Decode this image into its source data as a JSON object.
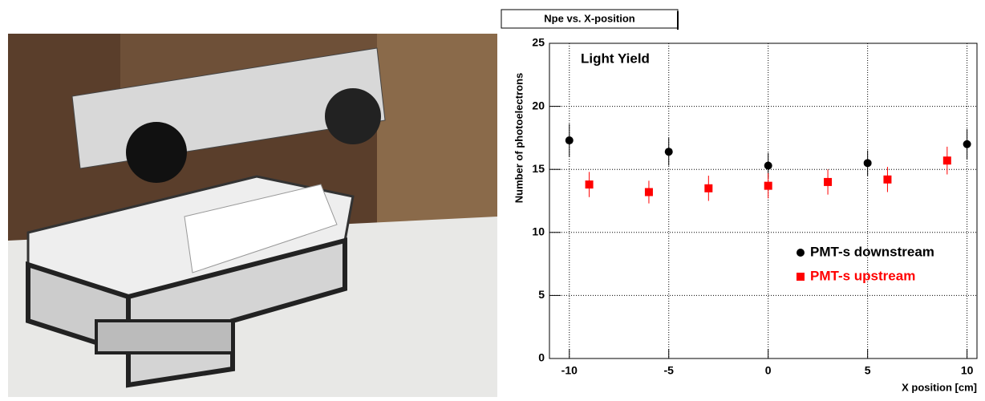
{
  "chart_data": {
    "type": "scatter",
    "title": "Npe vs. X-position",
    "annotation": "Light Yield",
    "x_label": "X position [cm]",
    "y_label": "Number of photoelectrons",
    "xlim": [
      -11,
      10.5
    ],
    "xticks": [
      -10,
      -5,
      0,
      5,
      10
    ],
    "ylim": [
      0,
      25
    ],
    "yticks": [
      0,
      5,
      10,
      15,
      20,
      25
    ],
    "grid": true,
    "legend": "lower right",
    "series": [
      {
        "name": "PMT-s downstream",
        "color": "#000000",
        "marker": "circle",
        "x": [
          -10,
          -5,
          0,
          5,
          10
        ],
        "values": [
          17.3,
          16.4,
          15.3,
          15.5,
          17.0
        ],
        "errors": [
          1.3,
          1.1,
          1.0,
          1.0,
          1.2
        ]
      },
      {
        "name": "PMT-s upstream",
        "color": "#ff0000",
        "marker": "square",
        "x": [
          -9,
          -6,
          -3,
          0,
          3,
          6,
          9
        ],
        "values": [
          13.8,
          13.2,
          13.5,
          13.7,
          14.0,
          14.2,
          15.7
        ],
        "errors": [
          1.0,
          0.9,
          1.0,
          1.0,
          1.0,
          1.0,
          1.1
        ]
      }
    ]
  }
}
